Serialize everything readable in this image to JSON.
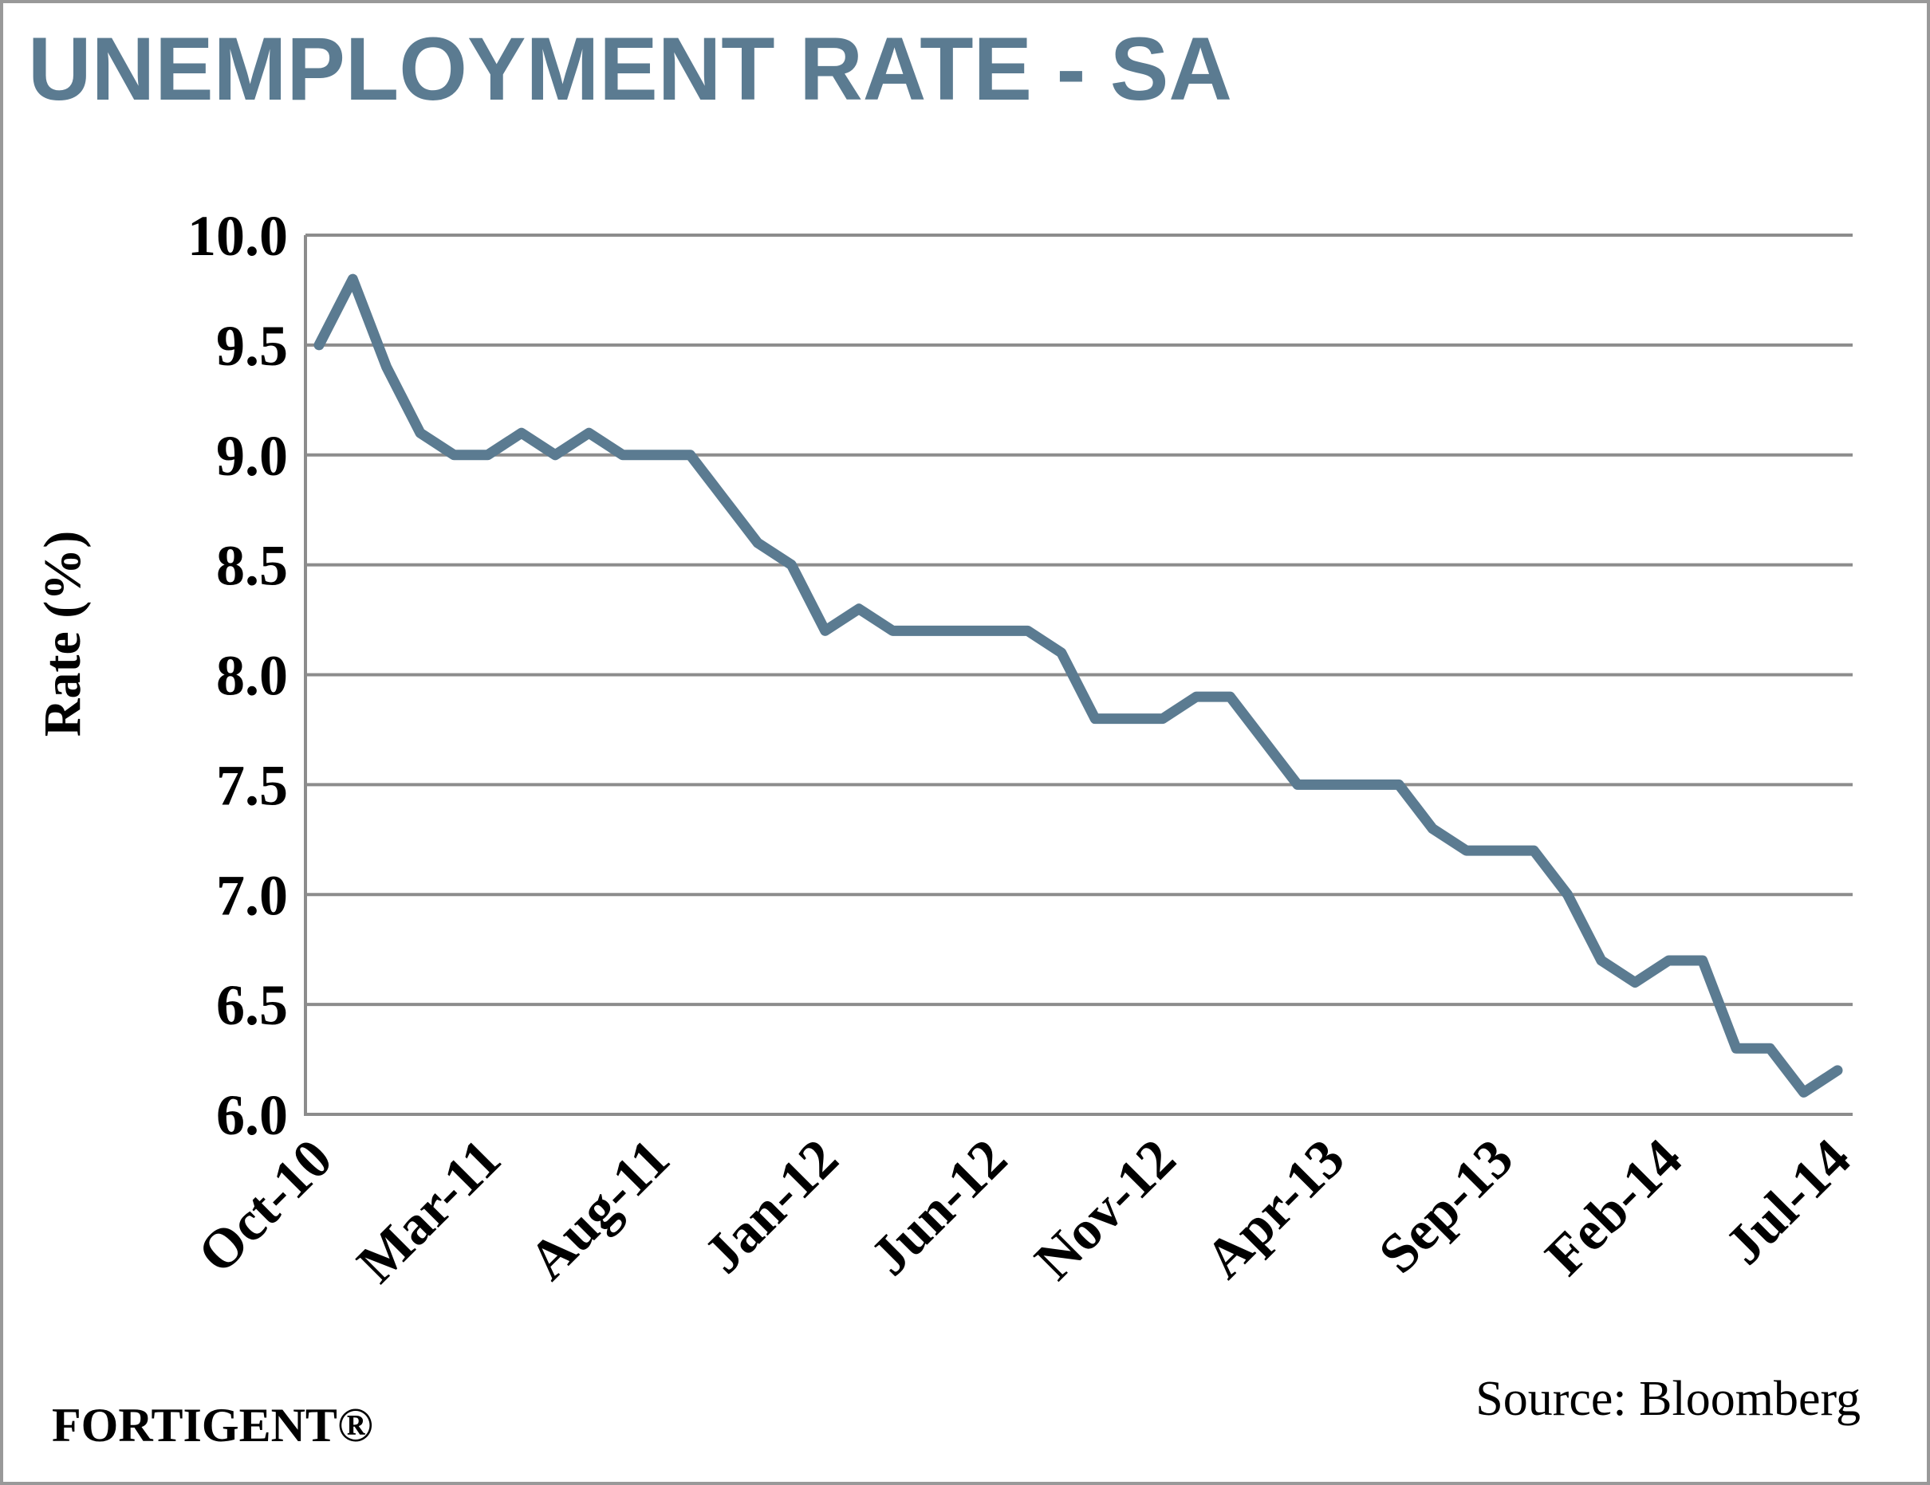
{
  "chart_data": {
    "type": "line",
    "title": "UNEMPLOYMENT RATE - SA",
    "y_label": "Rate (%)",
    "source": "Source: Bloomberg",
    "brand": "FORTIGENT®",
    "categories": [
      "Oct-10",
      null,
      null,
      null,
      null,
      "Mar-11",
      null,
      null,
      null,
      null,
      "Aug-11",
      null,
      null,
      null,
      null,
      "Jan-12",
      null,
      null,
      null,
      null,
      "Jun-12",
      null,
      null,
      null,
      null,
      "Nov-12",
      null,
      null,
      null,
      null,
      "Apr-13",
      null,
      null,
      null,
      null,
      "Sep-13",
      null,
      null,
      null,
      null,
      "Feb-14",
      null,
      null,
      null,
      null,
      "Jul-14"
    ],
    "series": [
      {
        "name": "Unemployment Rate",
        "color": "#5b7b91",
        "values": [
          9.5,
          9.8,
          9.4,
          9.1,
          9.0,
          9.0,
          9.1,
          9.0,
          9.1,
          9.0,
          9.0,
          9.0,
          8.8,
          8.6,
          8.5,
          8.2,
          8.3,
          8.2,
          8.2,
          8.2,
          8.2,
          8.2,
          8.1,
          7.8,
          7.8,
          7.8,
          7.9,
          7.9,
          7.7,
          7.5,
          7.5,
          7.5,
          7.5,
          7.3,
          7.2,
          7.2,
          7.2,
          7.0,
          6.7,
          6.6,
          6.7,
          6.7,
          6.3,
          6.3,
          6.1,
          6.2
        ]
      }
    ],
    "ylim": [
      6.0,
      10.0
    ],
    "yticks": [
      {
        "value": 6,
        "label": "6.0"
      },
      {
        "value": 6.5,
        "label": "6.5"
      },
      {
        "value": 7,
        "label": "7.0"
      },
      {
        "value": 7.5,
        "label": "7.5"
      },
      {
        "value": 8,
        "label": "8.0"
      },
      {
        "value": 8.5,
        "label": "8.5"
      },
      {
        "value": 9,
        "label": "9.0"
      },
      {
        "value": 9.5,
        "label": "9.5"
      },
      {
        "value": 10,
        "label": "10.0"
      }
    ],
    "grid": true,
    "title_color": "#5b7b91"
  }
}
